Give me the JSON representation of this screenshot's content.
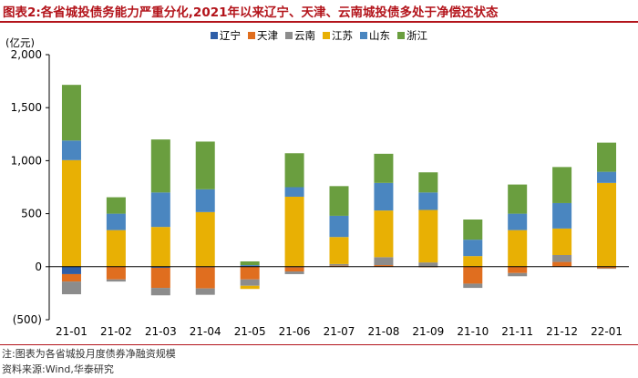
{
  "header": {
    "title": "图表2:各省城投债务能力严重分化,2021年以来辽宁、天津、云南城投债多处于净偿还状态"
  },
  "footer": {
    "note": "注:图表为各省城投月度债券净融资规模",
    "source": "资料来源:Wind,华泰研究"
  },
  "chart_data": {
    "type": "bar",
    "stacked": true,
    "unit_label": "(亿元)",
    "categories": [
      "21-01",
      "21-02",
      "21-03",
      "21-04",
      "21-05",
      "21-06",
      "21-07",
      "21-08",
      "21-09",
      "21-10",
      "21-11",
      "21-12",
      "22-01"
    ],
    "ylim": [
      -500,
      2000
    ],
    "yticks": [
      -500,
      0,
      500,
      1000,
      1500,
      2000
    ],
    "ytick_labels": [
      "(500)",
      "0",
      "500",
      "1,000",
      "1,500",
      "2,000"
    ],
    "grid": false,
    "legend_position": "top",
    "series": [
      {
        "name": "辽宁",
        "color": "#2e5ea8",
        "values": [
          -70,
          0,
          -10,
          -5,
          0,
          -5,
          0,
          0,
          0,
          0,
          0,
          0,
          0
        ]
      },
      {
        "name": "天津",
        "color": "#e06e1f",
        "values": [
          -70,
          -120,
          -190,
          -200,
          -120,
          -40,
          10,
          15,
          -5,
          -160,
          -60,
          45,
          -15
        ]
      },
      {
        "name": "云南",
        "color": "#8c8c8c",
        "values": [
          -120,
          -20,
          -70,
          -60,
          -60,
          -25,
          15,
          75,
          40,
          -40,
          -30,
          65,
          -5
        ]
      },
      {
        "name": "江苏",
        "color": "#e8b004",
        "values": [
          1005,
          345,
          375,
          515,
          -30,
          660,
          255,
          440,
          495,
          100,
          345,
          250,
          790
        ]
      },
      {
        "name": "山东",
        "color": "#4a86c0",
        "values": [
          185,
          155,
          325,
          215,
          15,
          90,
          200,
          260,
          165,
          155,
          155,
          240,
          105
        ]
      },
      {
        "name": "浙江",
        "color": "#6a9e3f",
        "values": [
          525,
          155,
          500,
          450,
          35,
          320,
          280,
          275,
          190,
          190,
          275,
          340,
          275
        ]
      }
    ]
  }
}
